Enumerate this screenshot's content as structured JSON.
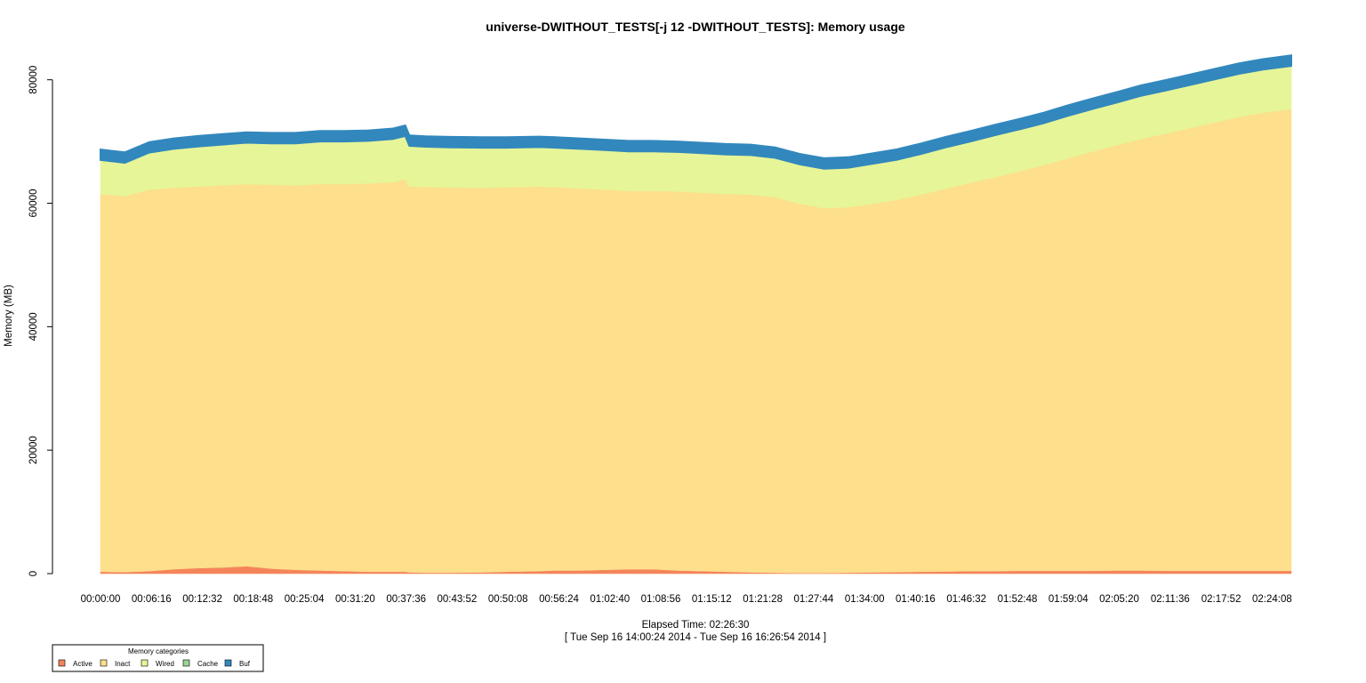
{
  "chart_data": {
    "type": "area",
    "stacked": true,
    "title": "universe-DWITHOUT_TESTS[-j 12  -DWITHOUT_TESTS]: Memory usage",
    "ylabel": "Memory (MB)",
    "xlabel": "Elapsed Time: 02:26:30",
    "xlabel_sub": "[ Tue Sep 16 14:00:24 2014 - Tue Sep 16 16:26:54 2014 ]",
    "x_unit": "elapsed minutes",
    "xlim": [
      0,
      146.5
    ],
    "ylim": [
      0,
      85000
    ],
    "yticks": [
      0,
      20000,
      40000,
      60000,
      80000
    ],
    "ytick_labels": [
      "0",
      "20000",
      "40000",
      "60000",
      "80000"
    ],
    "xticks": [
      0,
      6.2667,
      12.5333,
      18.8,
      25.0667,
      31.3333,
      37.6,
      43.8667,
      50.1333,
      56.4,
      62.6667,
      68.9333,
      75.2,
      81.4667,
      87.7333,
      94.0,
      100.2667,
      106.5333,
      112.8,
      119.0667,
      125.3333,
      131.6,
      137.8667,
      144.1333
    ],
    "xtick_labels": [
      "00:00:00",
      "00:06:16",
      "00:12:32",
      "00:18:48",
      "00:25:04",
      "00:31:20",
      "00:37:36",
      "00:43:52",
      "00:50:08",
      "00:56:24",
      "01:02:40",
      "01:08:56",
      "01:15:12",
      "01:21:28",
      "01:27:44",
      "01:34:00",
      "01:40:16",
      "01:46:32",
      "01:52:48",
      "01:59:04",
      "02:05:20",
      "02:11:36",
      "02:17:52",
      "02:24:08"
    ],
    "x": [
      0,
      3,
      6,
      9,
      12,
      15,
      18,
      21,
      24,
      27,
      30,
      33,
      36,
      37.5,
      38,
      40,
      43,
      47,
      50,
      54,
      56,
      59,
      62,
      65,
      68,
      71,
      74,
      77,
      80,
      83,
      86,
      89,
      92,
      95,
      98,
      101,
      104,
      107,
      110,
      113,
      116,
      119,
      122,
      125,
      128,
      131,
      134,
      137,
      140,
      143,
      146.5
    ],
    "series": [
      {
        "name": "Active",
        "color": "#f4845a",
        "values": [
          300,
          250,
          400,
          700,
          900,
          1000,
          1200,
          800,
          600,
          500,
          400,
          300,
          300,
          300,
          200,
          150,
          150,
          200,
          300,
          400,
          500,
          500,
          600,
          700,
          700,
          500,
          400,
          300,
          200,
          150,
          100,
          100,
          150,
          200,
          250,
          300,
          350,
          400,
          400,
          450,
          450,
          450,
          450,
          500,
          500,
          450,
          450,
          450,
          450,
          450,
          450
        ]
      },
      {
        "name": "Inact",
        "color": "#fddf8c",
        "values": [
          61200,
          60900,
          61800,
          61800,
          61800,
          61900,
          61900,
          62200,
          62300,
          62600,
          62700,
          62900,
          63100,
          63600,
          62500,
          62500,
          62400,
          62300,
          62300,
          62300,
          62100,
          61900,
          61600,
          61300,
          61300,
          61400,
          61300,
          61200,
          61200,
          60800,
          59800,
          59100,
          59200,
          59700,
          60300,
          61100,
          62000,
          62900,
          63800,
          64700,
          65700,
          66800,
          67900,
          68900,
          69900,
          70800,
          71700,
          72600,
          73500,
          74200,
          74800
        ]
      },
      {
        "name": "Wired",
        "color": "#e6f598",
        "values": [
          5500,
          5400,
          6000,
          6300,
          6500,
          6600,
          6700,
          6700,
          6800,
          6900,
          6900,
          6900,
          7000,
          7000,
          6600,
          6500,
          6500,
          6500,
          6400,
          6400,
          6400,
          6400,
          6400,
          6400,
          6400,
          6400,
          6400,
          6400,
          6400,
          6400,
          6400,
          6400,
          6400,
          6500,
          6500,
          6600,
          6700,
          6700,
          6800,
          6800,
          6800,
          6900,
          6900,
          6900,
          7000,
          7000,
          7000,
          7000,
          7000,
          7000,
          7000
        ]
      },
      {
        "name": "Cache",
        "color": "#99d594",
        "values": [
          0,
          0,
          0,
          0,
          0,
          0,
          0,
          0,
          0,
          0,
          0,
          0,
          0,
          0,
          0,
          0,
          0,
          0,
          0,
          0,
          0,
          0,
          0,
          0,
          0,
          0,
          0,
          0,
          0,
          0,
          0,
          0,
          0,
          0,
          0,
          0,
          0,
          0,
          0,
          0,
          0,
          0,
          0,
          0,
          0,
          0,
          0,
          0,
          0,
          0,
          0
        ]
      },
      {
        "name": "Buf",
        "color": "#3288bd",
        "values": [
          1700,
          1700,
          1700,
          1700,
          1700,
          1700,
          1700,
          1700,
          1700,
          1700,
          1700,
          1700,
          1700,
          1700,
          1700,
          1700,
          1700,
          1700,
          1700,
          1700,
          1700,
          1700,
          1700,
          1700,
          1700,
          1700,
          1700,
          1700,
          1700,
          1700,
          1700,
          1700,
          1700,
          1700,
          1700,
          1700,
          1700,
          1700,
          1700,
          1700,
          1700,
          1700,
          1700,
          1700,
          1700,
          1700,
          1700,
          1700,
          1700,
          1700,
          1700
        ]
      }
    ],
    "legend": {
      "title": "Memory categories",
      "placement": "bottom-left",
      "entries": [
        "Active",
        "Inact",
        "Wired",
        "Cache",
        "Buf"
      ]
    },
    "grid": false
  }
}
